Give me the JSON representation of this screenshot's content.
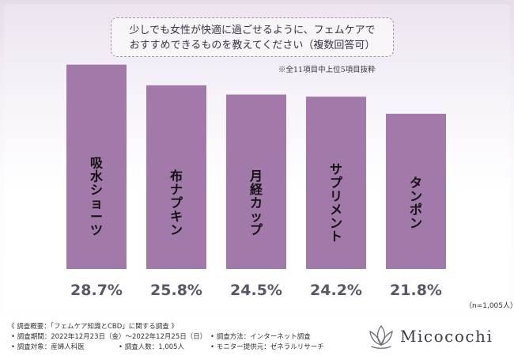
{
  "question": {
    "line1": "少しでも女性が快適に過ごせるように、フェムケアで",
    "line2": "おすすめできるものを教えてください（複数回答可）"
  },
  "note": "※全11項目中上位5項目抜粋",
  "sample_note": "（n=1,005人）",
  "footer": {
    "title": "《 調査概要：「フェムケア知識とCBD」に関する調査 》",
    "period": "• 調査期間：2022年12月23日（金）〜2022年12月25日（日）",
    "target": "• 調査対象：産婦人科医",
    "count": "• 調査人数：1,005人",
    "method": "• 調査方法：インターネット調査",
    "provider": "• モニター提供元：ゼネラルリサーチ"
  },
  "logo": {
    "text": "Micocochi"
  },
  "colors": {
    "bar": "#a27aa9",
    "value": "#5c5566",
    "label": "#111111"
  },
  "chart_data": {
    "type": "bar",
    "categories": [
      "吸水ショーツ",
      "布ナプキン",
      "月経カップ",
      "サプリメント",
      "タンポン"
    ],
    "values": [
      28.7,
      25.8,
      24.5,
      24.2,
      21.8
    ],
    "value_labels": [
      "28.7%",
      "25.8%",
      "24.5%",
      "24.2%",
      "21.8%"
    ],
    "ylim": [
      0,
      30
    ],
    "grid": false
  }
}
